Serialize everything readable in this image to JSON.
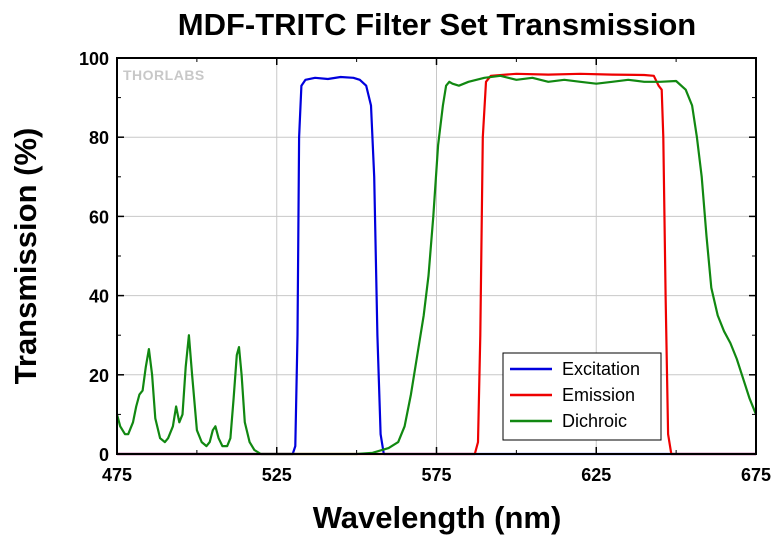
{
  "chart_data": {
    "type": "line",
    "title": "MDF-TRITC Filter Set Transmission",
    "xlabel": "Wavelength (nm)",
    "ylabel": "Transmission (%)",
    "xlim": [
      475,
      675
    ],
    "ylim": [
      0,
      100
    ],
    "xticks": [
      475,
      525,
      575,
      625,
      675
    ],
    "yticks": [
      0,
      20,
      40,
      60,
      80,
      100
    ],
    "grid": true,
    "legend_position": "lower-right",
    "watermark": "THORLABS",
    "series": [
      {
        "name": "Excitation",
        "color": "#0000dd",
        "points": [
          [
            475,
            0
          ],
          [
            530,
            0
          ],
          [
            530.8,
            2
          ],
          [
            531.5,
            30
          ],
          [
            532,
            80
          ],
          [
            532.7,
            93
          ],
          [
            534,
            94.5
          ],
          [
            537,
            95
          ],
          [
            541,
            94.7
          ],
          [
            545,
            95.2
          ],
          [
            549,
            95
          ],
          [
            551,
            94.5
          ],
          [
            553,
            93
          ],
          [
            554.5,
            88
          ],
          [
            555.5,
            70
          ],
          [
            556.5,
            30
          ],
          [
            557.5,
            5
          ],
          [
            558.5,
            0
          ],
          [
            675,
            0
          ]
        ]
      },
      {
        "name": "Emission",
        "color": "#ee0000",
        "points": [
          [
            475,
            0
          ],
          [
            587,
            0
          ],
          [
            588,
            3
          ],
          [
            588.7,
            30
          ],
          [
            589.5,
            80
          ],
          [
            590.5,
            94
          ],
          [
            592,
            95.5
          ],
          [
            600,
            96
          ],
          [
            610,
            95.8
          ],
          [
            620,
            96
          ],
          [
            630,
            95.8
          ],
          [
            640,
            95.7
          ],
          [
            643,
            95.5
          ],
          [
            644.5,
            93
          ],
          [
            645.5,
            92
          ],
          [
            646,
            80
          ],
          [
            646.7,
            40
          ],
          [
            647.5,
            5
          ],
          [
            648.5,
            0
          ],
          [
            675,
            0
          ]
        ]
      },
      {
        "name": "Dichroic",
        "color": "#118811",
        "points": [
          [
            475,
            10
          ],
          [
            476,
            7
          ],
          [
            477.5,
            5
          ],
          [
            478.5,
            5
          ],
          [
            480,
            8
          ],
          [
            481,
            12
          ],
          [
            482,
            15
          ],
          [
            483,
            16
          ],
          [
            484,
            22
          ],
          [
            485,
            26.5
          ],
          [
            486,
            20
          ],
          [
            487,
            9
          ],
          [
            488.5,
            4
          ],
          [
            490,
            3
          ],
          [
            491,
            4
          ],
          [
            492.5,
            7
          ],
          [
            493.5,
            12
          ],
          [
            494.5,
            8
          ],
          [
            495.5,
            10
          ],
          [
            496.5,
            22
          ],
          [
            497.5,
            30
          ],
          [
            498.5,
            20
          ],
          [
            500,
            6
          ],
          [
            501.5,
            3
          ],
          [
            503,
            2
          ],
          [
            504,
            3
          ],
          [
            505,
            6
          ],
          [
            505.8,
            7
          ],
          [
            506.8,
            4
          ],
          [
            508,
            2
          ],
          [
            509.5,
            2
          ],
          [
            510.5,
            4
          ],
          [
            511.5,
            14
          ],
          [
            512.5,
            25
          ],
          [
            513.2,
            27
          ],
          [
            514,
            20
          ],
          [
            515,
            8
          ],
          [
            516.5,
            3
          ],
          [
            518,
            1
          ],
          [
            520,
            0
          ],
          [
            550,
            0
          ],
          [
            555,
            0.3
          ],
          [
            560,
            1.5
          ],
          [
            563,
            3
          ],
          [
            565,
            7
          ],
          [
            567,
            15
          ],
          [
            569,
            25
          ],
          [
            571,
            35
          ],
          [
            572.5,
            45
          ],
          [
            574,
            60
          ],
          [
            575.5,
            78
          ],
          [
            577,
            88
          ],
          [
            578,
            93
          ],
          [
            579,
            94
          ],
          [
            580,
            93.5
          ],
          [
            582,
            93
          ],
          [
            585,
            94
          ],
          [
            590,
            95
          ],
          [
            595,
            95.5
          ],
          [
            600,
            94.5
          ],
          [
            605,
            95
          ],
          [
            610,
            94
          ],
          [
            615,
            94.5
          ],
          [
            620,
            94
          ],
          [
            625,
            93.5
          ],
          [
            630,
            94
          ],
          [
            635,
            94.5
          ],
          [
            640,
            94
          ],
          [
            645,
            94
          ],
          [
            650,
            94.2
          ],
          [
            653,
            92
          ],
          [
            655,
            88
          ],
          [
            656.5,
            80
          ],
          [
            658,
            70
          ],
          [
            659.5,
            55
          ],
          [
            661,
            42
          ],
          [
            663,
            35
          ],
          [
            665,
            31
          ],
          [
            667,
            28
          ],
          [
            669,
            24
          ],
          [
            671,
            19
          ],
          [
            673,
            14
          ],
          [
            675,
            10
          ]
        ]
      }
    ]
  }
}
